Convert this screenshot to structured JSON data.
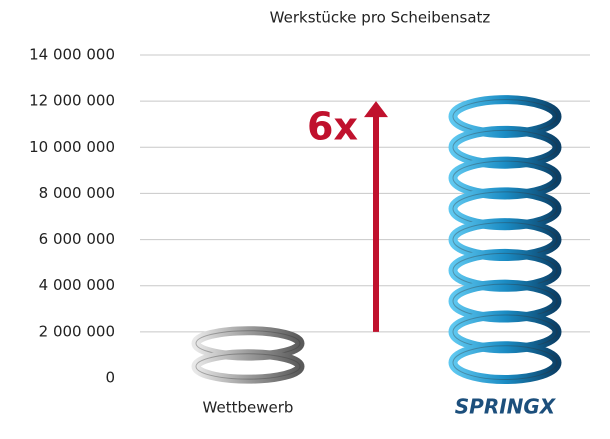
{
  "chart_data": {
    "type": "bar",
    "title": "Werkstücke pro Scheibensatz",
    "categories": [
      "Wettbewerb",
      "SPRINGX"
    ],
    "values": [
      2000000,
      12000000
    ],
    "colors": [
      "#9c9c9c",
      "#1b8cc4"
    ],
    "annotation": "6x",
    "ylim": [
      0,
      14000000
    ],
    "yticks": [
      {
        "value": 0,
        "label": "0"
      },
      {
        "value": 2000000,
        "label": "2 000 000"
      },
      {
        "value": 4000000,
        "label": "4 000 000"
      },
      {
        "value": 6000000,
        "label": "6 000 000"
      },
      {
        "value": 8000000,
        "label": "8 000 000"
      },
      {
        "value": 10000000,
        "label": "10 000 000"
      },
      {
        "value": 12000000,
        "label": "12 000 000"
      },
      {
        "value": 14000000,
        "label": "14 000 000"
      }
    ],
    "grid": true
  }
}
